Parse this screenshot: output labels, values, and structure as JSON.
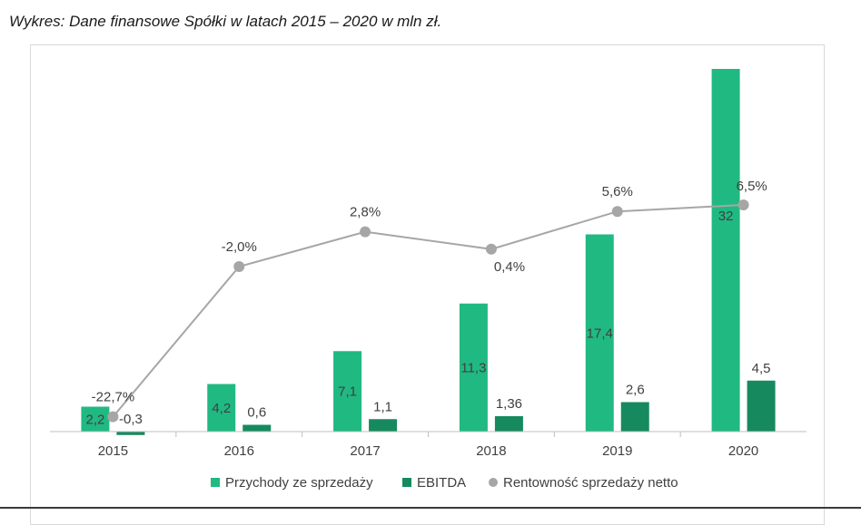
{
  "caption": "Wykres: Dane finansowe Spółki w latach 2015 – 2020 w mln zł.",
  "colors": {
    "revenue": "#20b982",
    "ebitda": "#168a5e",
    "margin_line": "#a6a6a6",
    "axis": "#bfbfbf",
    "text": "#404040"
  },
  "chart_data": {
    "type": "bar",
    "categories": [
      "2015",
      "2016",
      "2017",
      "2018",
      "2019",
      "2020"
    ],
    "series": [
      {
        "name": "Przychody ze sprzedaży",
        "type": "bar",
        "values": [
          2.2,
          4.2,
          7.1,
          11.3,
          17.4,
          32
        ],
        "labels": [
          "2,2",
          "4,2",
          "7,1",
          "11,3",
          "17,4",
          "32"
        ]
      },
      {
        "name": "EBITDA",
        "type": "bar",
        "values": [
          -0.3,
          0.6,
          1.1,
          1.36,
          2.6,
          4.5
        ],
        "labels": [
          "-0,3",
          "0,6",
          "1,1",
          "1,36",
          "2,6",
          "4,5"
        ]
      },
      {
        "name": "Rentowność sprzedaży netto",
        "type": "line",
        "axis": "secondary",
        "values": [
          -22.7,
          -2.0,
          2.8,
          0.4,
          5.6,
          6.5
        ],
        "labels": [
          "-22,7%",
          "-2,0%",
          "2,8%",
          "0,4%",
          "5,6%",
          "6,5%"
        ]
      }
    ],
    "grid": false,
    "legend": "bottom"
  }
}
